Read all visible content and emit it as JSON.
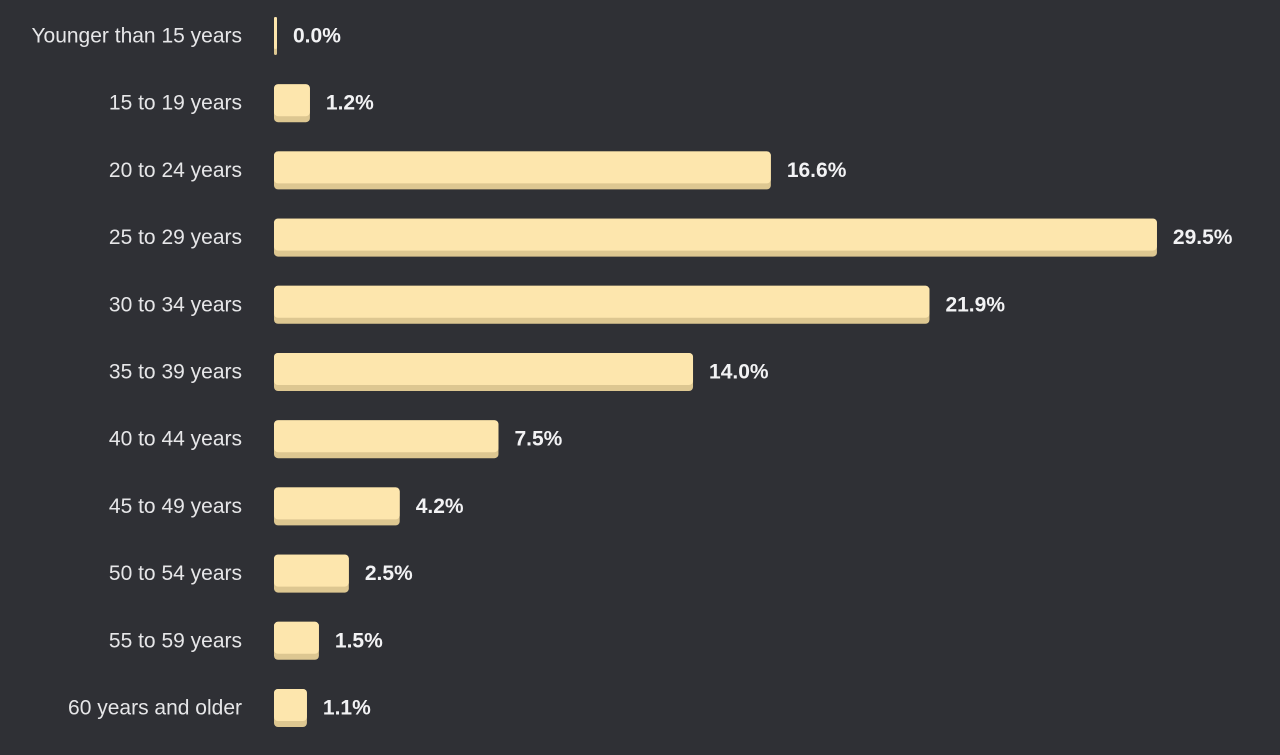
{
  "chart_data": {
    "type": "bar",
    "orientation": "horizontal",
    "categories": [
      "Younger than 15 years",
      "15 to 19 years",
      "20 to 24 years",
      "25 to 29 years",
      "30 to 34 years",
      "35 to 39 years",
      "40 to 44 years",
      "45 to 49 years",
      "50 to 54 years",
      "55 to 59 years",
      "60 years and older"
    ],
    "values": [
      0.0,
      1.2,
      16.6,
      29.5,
      21.9,
      14.0,
      7.5,
      4.2,
      2.5,
      1.5,
      1.1
    ],
    "value_labels": [
      "0.0%",
      "1.2%",
      "16.6%",
      "29.5%",
      "21.9%",
      "14.0%",
      "7.5%",
      "4.2%",
      "2.5%",
      "1.5%",
      "1.1%"
    ],
    "title": "",
    "xlabel": "",
    "ylabel": "",
    "grid": false,
    "legend": "none"
  },
  "colors": {
    "background": "#2f3035",
    "bar": "#fde6ad",
    "bar_shadow": "#ddc791",
    "category_text": "#e6e6e8",
    "value_text": "#f2f2f4"
  }
}
